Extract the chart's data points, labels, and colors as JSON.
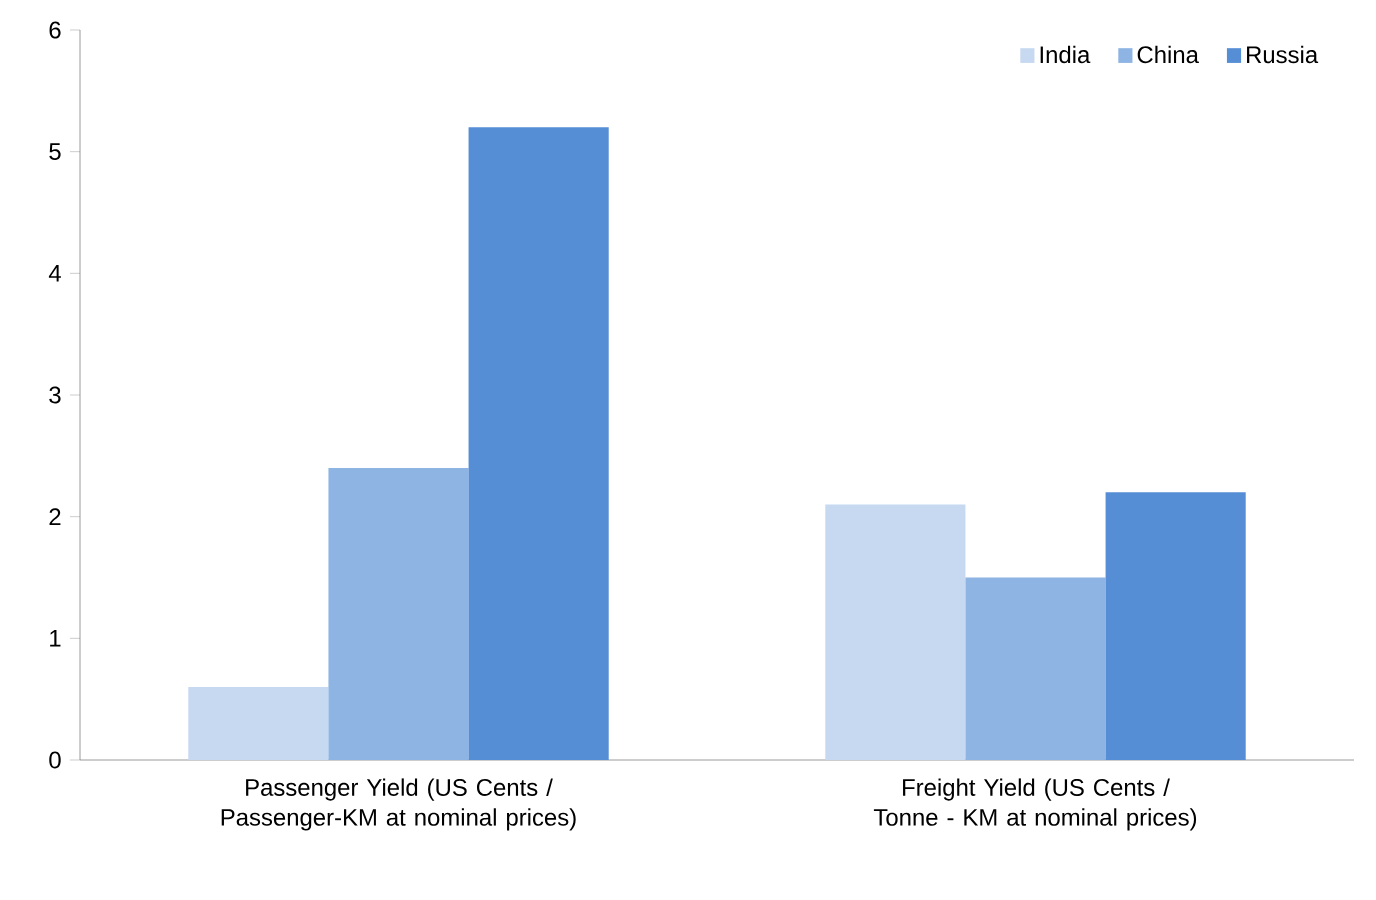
{
  "chart_data": {
    "type": "bar",
    "categories": [
      "Passenger Yield (US Cents / Passenger-KM at nominal prices)",
      "Freight Yield (US Cents / Tonne - KM at nominal prices)"
    ],
    "series": [
      {
        "name": "India",
        "color": "#c6d9f1",
        "values": [
          0.6,
          2.1
        ]
      },
      {
        "name": "China",
        "color": "#8eb4e3",
        "values": [
          2.4,
          1.5
        ]
      },
      {
        "name": "Russia",
        "color": "#558ed5",
        "values": [
          5.2,
          2.2
        ]
      }
    ],
    "ylim": [
      0,
      6
    ],
    "yticks": [
      0,
      1,
      2,
      3,
      4,
      5,
      6
    ],
    "grid": false,
    "legend": "top right"
  }
}
